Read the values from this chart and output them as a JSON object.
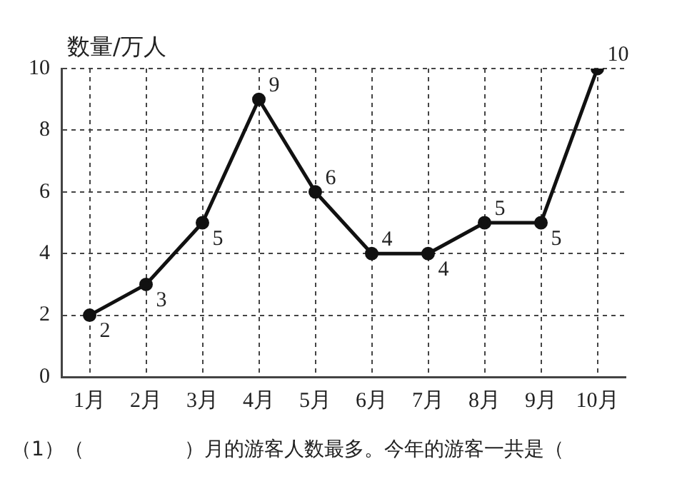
{
  "chart_data": {
    "type": "line",
    "ylabel": "数量/万人",
    "categories": [
      "1月",
      "2月",
      "3月",
      "4月",
      "5月",
      "6月",
      "7月",
      "8月",
      "9月",
      "10月"
    ],
    "series": [
      {
        "color": "#111111",
        "values": [
          2,
          3,
          5,
          9,
          6,
          4,
          4,
          5,
          5,
          10
        ]
      }
    ],
    "ylim": [
      0,
      10
    ],
    "yticks": [
      0,
      2,
      4,
      6,
      8,
      10
    ],
    "grid": true,
    "marker": "circle",
    "line_style": "solid",
    "data_labels": true,
    "legend": false,
    "annotations": [
      "（1）（　　　　　）月的游客人数最多。今年的游客一共是（"
    ]
  }
}
